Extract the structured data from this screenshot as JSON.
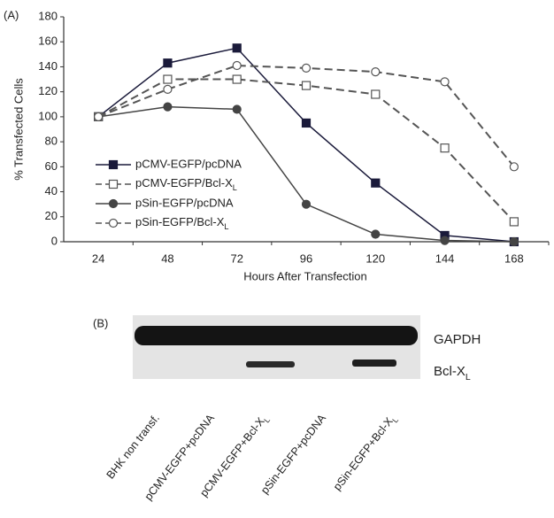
{
  "chart_data": {
    "type": "line",
    "panel_label": "(A)",
    "ylabel": "% Transfected Cells",
    "xlabel": "Hours After Transfection",
    "categories": [
      "24",
      "48",
      "72",
      "96",
      "120",
      "144",
      "168"
    ],
    "ylim": [
      0,
      180
    ],
    "yticks": [
      0,
      20,
      40,
      60,
      80,
      100,
      120,
      140,
      160,
      180
    ],
    "legend": "lower left",
    "series": [
      {
        "name": "pCMV-EGFP/pcDNA",
        "color": "#1a1a3a",
        "marker": "square",
        "filled": true,
        "dashed": false,
        "values": [
          100,
          143,
          155,
          95,
          47,
          5,
          0
        ]
      },
      {
        "name": "pCMV-EGFP/Bcl-XL",
        "color": "#555555",
        "marker": "square",
        "filled": false,
        "dashed": true,
        "values": [
          100,
          130,
          130,
          125,
          118,
          75,
          16
        ]
      },
      {
        "name": "pSin-EGFP/pcDNA",
        "color": "#444444",
        "marker": "circle",
        "filled": true,
        "dashed": false,
        "values": [
          100,
          108,
          106,
          30,
          6,
          1,
          0
        ]
      },
      {
        "name": "pSin-EGFP/Bcl-XL",
        "color": "#555555",
        "marker": "circle",
        "filled": false,
        "dashed": true,
        "values": [
          100,
          122,
          141,
          139,
          136,
          128,
          60
        ]
      }
    ]
  },
  "blot": {
    "panel_label": "(B)",
    "bands": [
      "GAPDH",
      "Bcl-XL"
    ],
    "lanes": [
      "BHK non transf.",
      "pCMV-EGFP+pcDNA",
      "pCMV-EGFP+Bcl-XL",
      "pSin-EGFP+pcDNA",
      "pSin-EGFP+Bcl-XL"
    ]
  }
}
